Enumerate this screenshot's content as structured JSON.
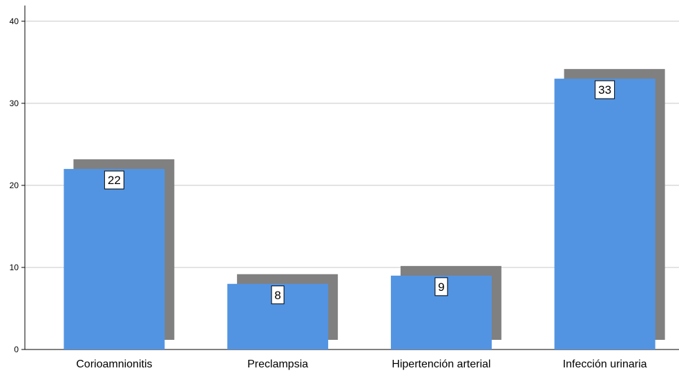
{
  "chart_data": {
    "type": "bar",
    "categories": [
      "Corioamnionitis",
      "Preclampsia",
      "Hipertención arterial",
      "Infección urinaria"
    ],
    "values": [
      22,
      8,
      9,
      33
    ],
    "title": "",
    "xlabel": "",
    "ylabel": "",
    "ylim": [
      0,
      42
    ],
    "yticks": [
      0,
      10,
      20,
      30,
      40
    ],
    "grid": true,
    "legend": "none",
    "bar_color": "#5294e2",
    "shadow_color": "#808080"
  }
}
